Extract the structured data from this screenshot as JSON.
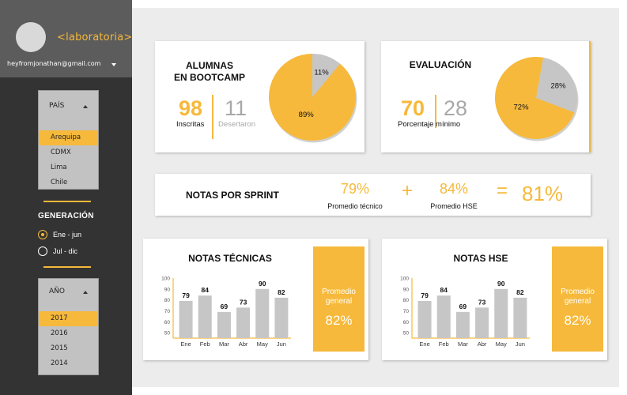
{
  "sidebar": {
    "logo": "<laboratoria>",
    "email": "heyfromjonathan@gmail.com",
    "pais": {
      "label": "PAÍS",
      "items": [
        "Arequipa",
        "CDMX",
        "Lima",
        "Chile"
      ],
      "selected": "Arequipa"
    },
    "generacion": {
      "title": "GENERACIÓN",
      "options": [
        "Ene - jun",
        "Jul - dic"
      ],
      "selected": "Ene - jun"
    },
    "anio": {
      "label": "AÑO",
      "items": [
        "2017",
        "2016",
        "2015",
        "2014"
      ],
      "selected": "2017"
    }
  },
  "alumnas": {
    "title_line1": "ALUMNAS",
    "title_line2": "EN BOOTCAMP",
    "inscritas_value": "98",
    "inscritas_label": "Inscritas",
    "desertaron_value": "11",
    "desertaron_label": "Desertaron",
    "pie": [
      {
        "label": "89%",
        "value": 89
      },
      {
        "label": "11%",
        "value": 11
      }
    ]
  },
  "evaluacion": {
    "title": "EVALUACIÓN",
    "value": "70",
    "value2": "28",
    "label": "Porcentaje mínimo",
    "pie": [
      {
        "label": "72%",
        "value": 72
      },
      {
        "label": "28%",
        "value": 28
      }
    ]
  },
  "sprint": {
    "title": "NOTAS POR SPRINT",
    "tech_value": "79%",
    "tech_label": "Promedio técnico",
    "plus": "+",
    "hse_value": "84%",
    "hse_label": "Promedio HSE",
    "equals": "=",
    "total": "81%"
  },
  "tecnicas": {
    "title": "NOTAS TÉCNICAS",
    "promedio_line1": "Promedio",
    "promedio_line2": "general",
    "promedio_value": "82%"
  },
  "hse": {
    "title": "NOTAS HSE",
    "promedio_line1": "Promedio",
    "promedio_line2": "general",
    "promedio_value": "82%"
  },
  "colors": {
    "accent": "#f6b93b",
    "gray": "#c6c6c6",
    "text_gray": "#a8a8a8"
  },
  "chart_data": [
    {
      "type": "bar",
      "title": "NOTAS TÉCNICAS",
      "categories": [
        "Ene",
        "Feb",
        "Mar",
        "Abr",
        "May",
        "Jun"
      ],
      "values": [
        79,
        84,
        69,
        73,
        90,
        82
      ],
      "yticks": [
        50,
        60,
        70,
        80,
        90,
        100
      ],
      "ylim": [
        45,
        100
      ],
      "xlabel": "",
      "ylabel": ""
    },
    {
      "type": "bar",
      "title": "NOTAS HSE",
      "categories": [
        "Ene",
        "Feb",
        "Mar",
        "Abr",
        "May",
        "Jun"
      ],
      "values": [
        79,
        84,
        69,
        73,
        90,
        82
      ],
      "yticks": [
        50,
        60,
        70,
        80,
        90,
        100
      ],
      "ylim": [
        45,
        100
      ],
      "xlabel": "",
      "ylabel": ""
    },
    {
      "type": "pie",
      "title": "",
      "slices": [
        {
          "label": "89%",
          "value": 89
        },
        {
          "label": "11%",
          "value": 11
        }
      ]
    },
    {
      "type": "pie",
      "title": "",
      "slices": [
        {
          "label": "72%",
          "value": 72
        },
        {
          "label": "28%",
          "value": 28
        }
      ]
    }
  ]
}
